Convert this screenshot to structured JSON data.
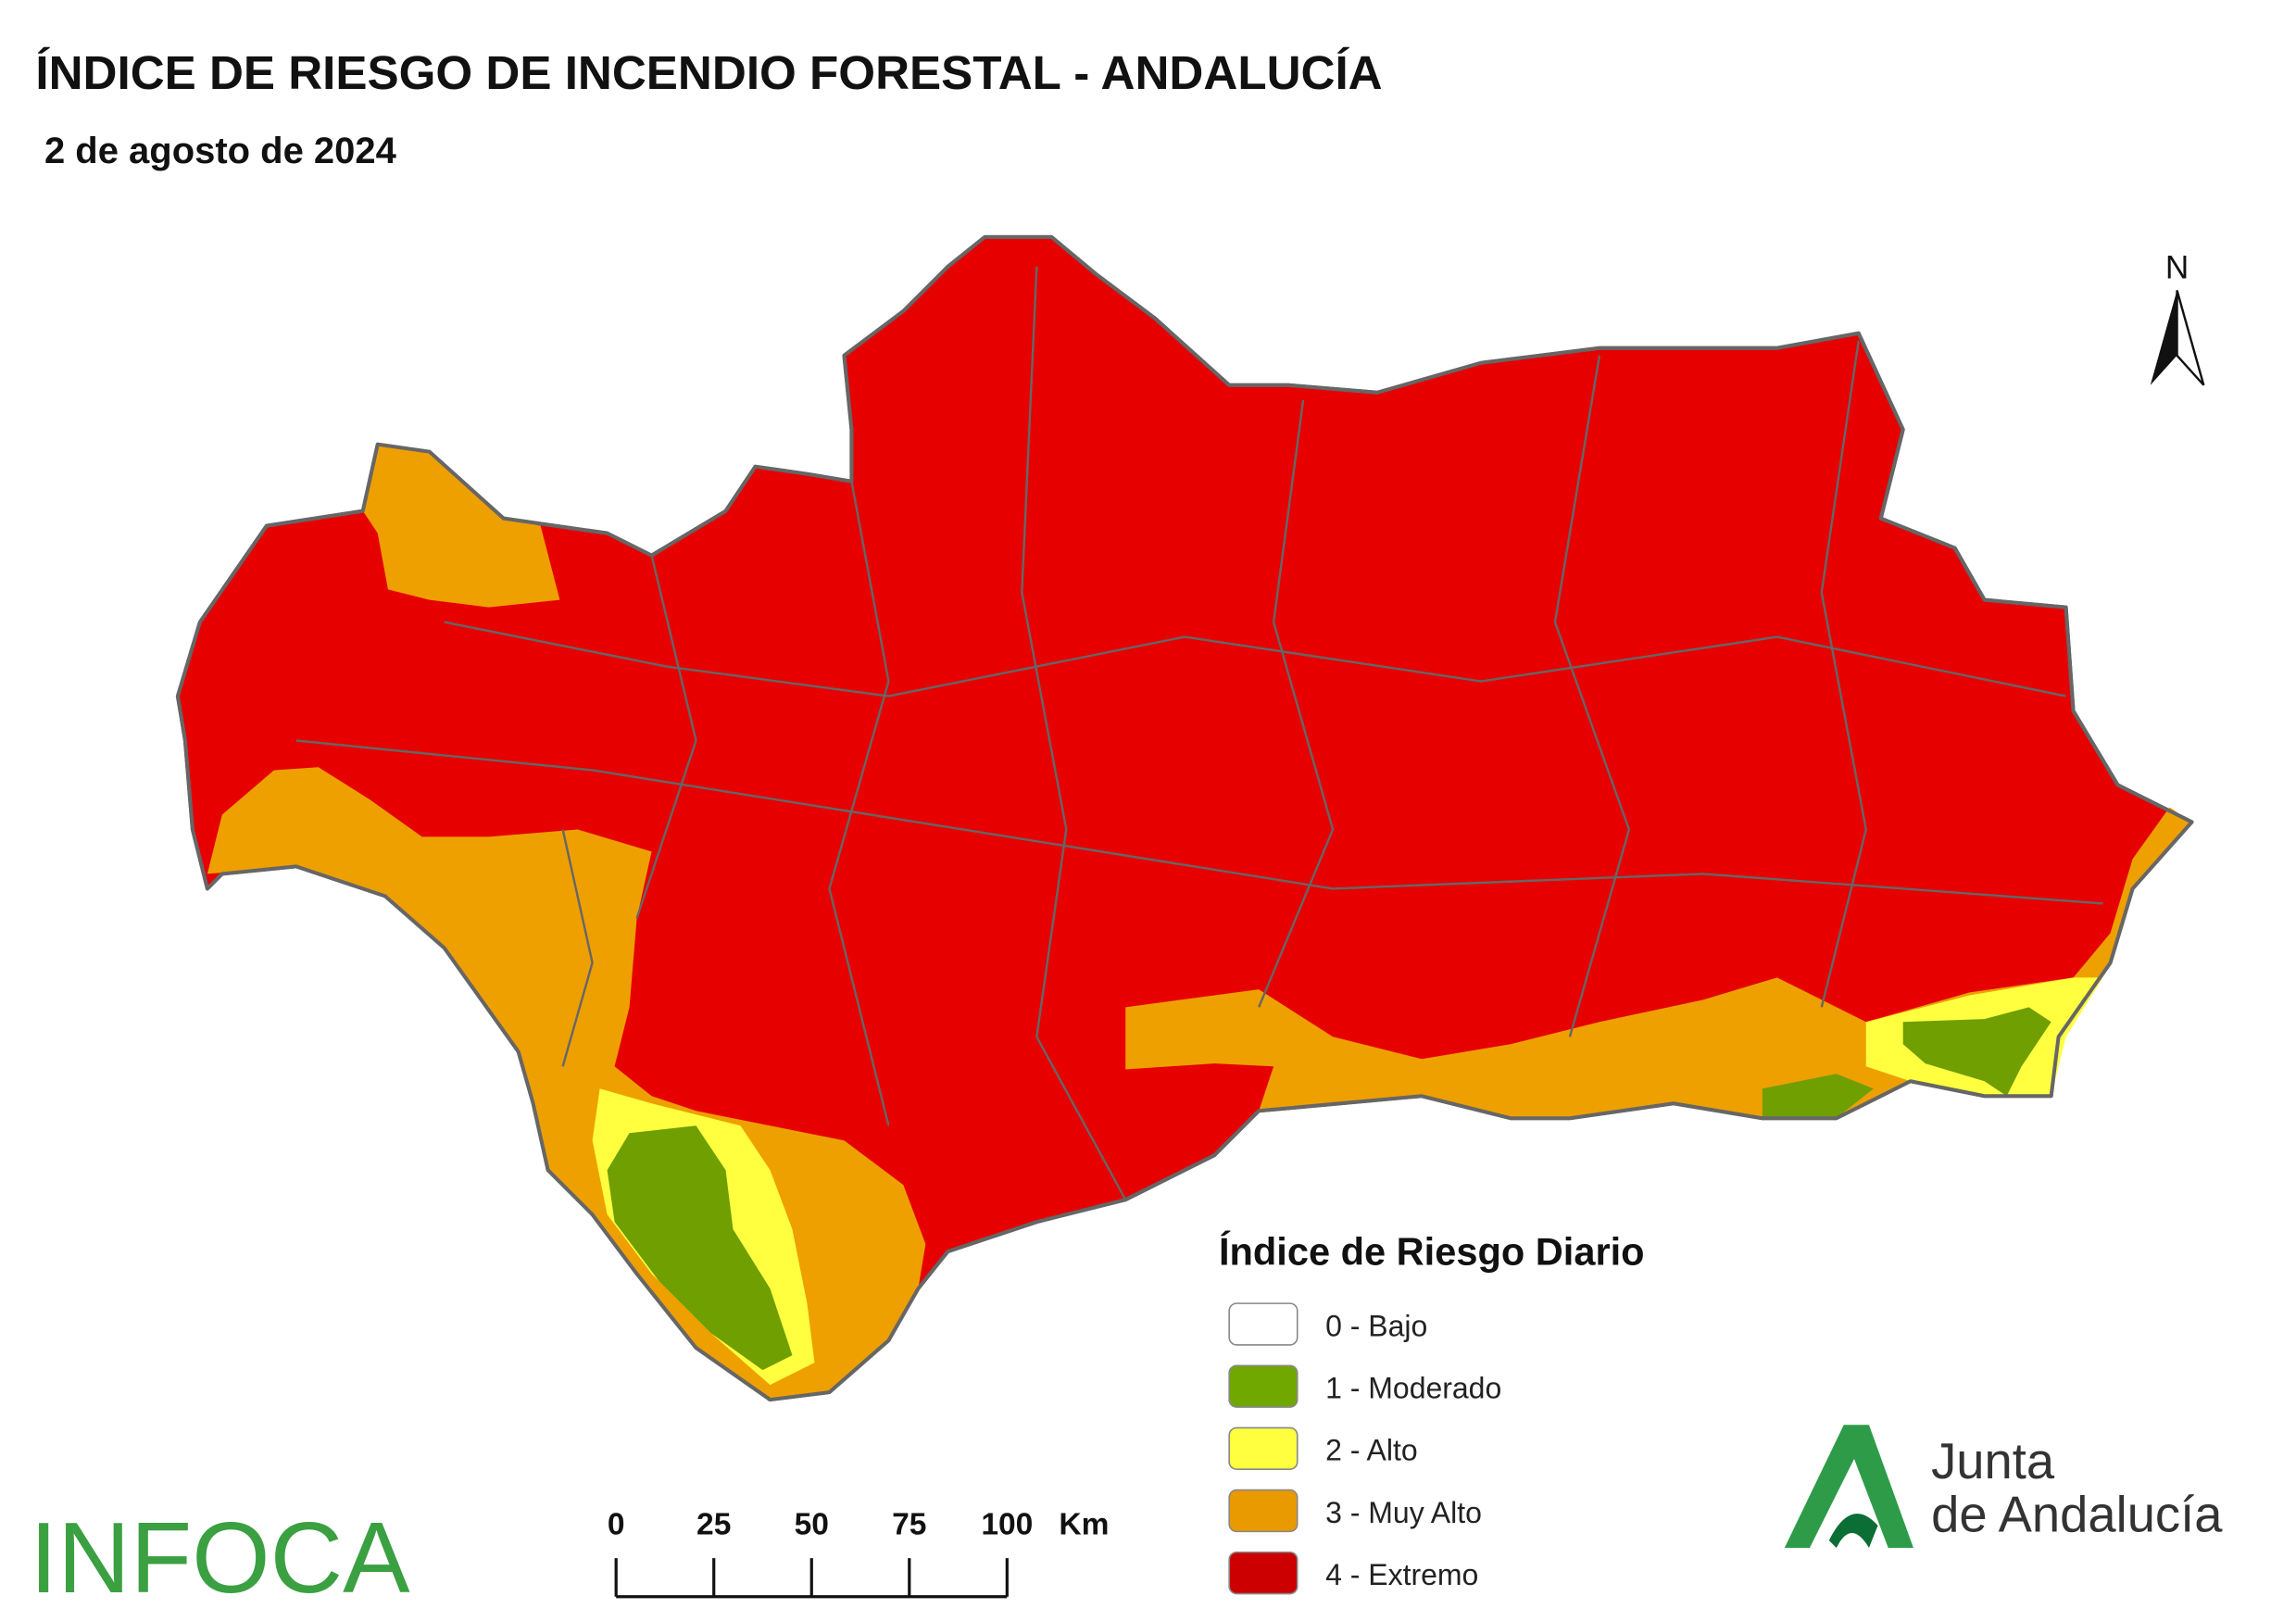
{
  "header": {
    "title": "ÍNDICE DE RIESGO DE INCENDIO FORESTAL - ANDALUCÍA",
    "subtitle": "2 de agosto de 2024"
  },
  "north_arrow": {
    "label": "N"
  },
  "legend": {
    "title": "Índice de Riesgo Diario",
    "items": [
      {
        "label": "0 - Bajo",
        "color": "#ffffff"
      },
      {
        "label": "1 - Moderado",
        "color": "#70a800"
      },
      {
        "label": "2 - Alto",
        "color": "#ffff40"
      },
      {
        "label": "3 - Muy Alto",
        "color": "#e89a00"
      },
      {
        "label": "4 - Extremo",
        "color": "#cc0000"
      }
    ]
  },
  "scale_bar": {
    "ticks": [
      0,
      25,
      50,
      75,
      100
    ],
    "unit": "Km"
  },
  "logos": {
    "left": "INFOCA",
    "right_line1": "Junta",
    "right_line2": "de Andalucía"
  }
}
